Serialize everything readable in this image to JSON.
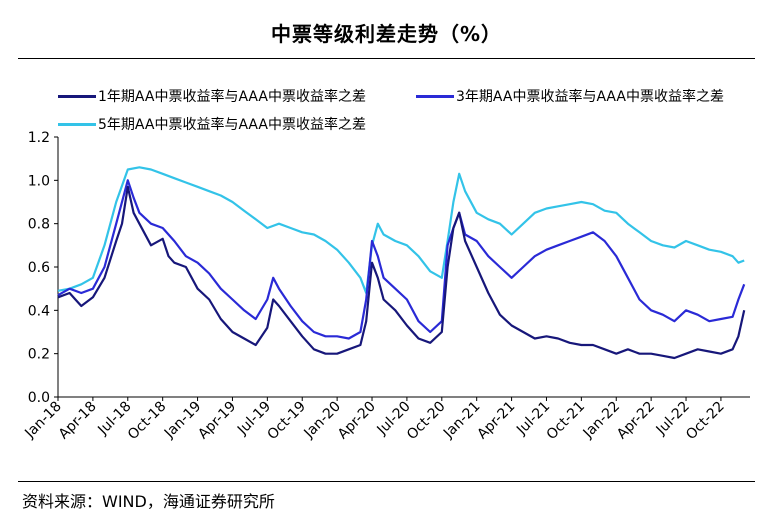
{
  "title": "中票等级利差走势（%）",
  "source": "资料来源：WIND，海通证券研究所",
  "colors": {
    "series1": "#17177a",
    "series2": "#2a2ad6",
    "series3": "#33c3e8",
    "axis": "#000000"
  },
  "chart_data": {
    "type": "line",
    "x_tick_labels": [
      "Jan-18",
      "Apr-18",
      "Jul-18",
      "Oct-18",
      "Jan-19",
      "Apr-19",
      "Jul-19",
      "Oct-19",
      "Jan-20",
      "Apr-20",
      "Jul-20",
      "Oct-20",
      "Jan-21",
      "Apr-21",
      "Jul-21",
      "Oct-21",
      "Jan-22",
      "Apr-22",
      "Jul-22",
      "Oct-22"
    ],
    "y_tick_labels": [
      "0.0",
      "0.2",
      "0.4",
      "0.6",
      "0.8",
      "1.0",
      "1.2"
    ],
    "ylim": [
      0,
      1.2
    ],
    "x_range_months": [
      0,
      59.5
    ],
    "series": [
      {
        "name": "1年期AA中票收益率与AAA中票收益率之差",
        "points": [
          [
            0,
            0.46
          ],
          [
            1,
            0.48
          ],
          [
            1.5,
            0.45
          ],
          [
            2,
            0.42
          ],
          [
            3,
            0.46
          ],
          [
            4,
            0.55
          ],
          [
            5,
            0.72
          ],
          [
            5.5,
            0.8
          ],
          [
            6,
            0.97
          ],
          [
            6.5,
            0.85
          ],
          [
            7,
            0.8
          ],
          [
            8,
            0.7
          ],
          [
            9,
            0.73
          ],
          [
            9.5,
            0.65
          ],
          [
            10,
            0.62
          ],
          [
            11,
            0.6
          ],
          [
            12,
            0.5
          ],
          [
            13,
            0.45
          ],
          [
            14,
            0.36
          ],
          [
            15,
            0.3
          ],
          [
            16,
            0.27
          ],
          [
            17,
            0.24
          ],
          [
            18,
            0.32
          ],
          [
            18.5,
            0.45
          ],
          [
            19,
            0.42
          ],
          [
            20,
            0.35
          ],
          [
            21,
            0.28
          ],
          [
            22,
            0.22
          ],
          [
            23,
            0.2
          ],
          [
            24,
            0.2
          ],
          [
            25,
            0.22
          ],
          [
            26,
            0.24
          ],
          [
            26.5,
            0.35
          ],
          [
            27,
            0.62
          ],
          [
            27.5,
            0.55
          ],
          [
            28,
            0.45
          ],
          [
            29,
            0.4
          ],
          [
            30,
            0.33
          ],
          [
            31,
            0.27
          ],
          [
            32,
            0.25
          ],
          [
            33,
            0.3
          ],
          [
            33.5,
            0.6
          ],
          [
            34,
            0.78
          ],
          [
            34.5,
            0.85
          ],
          [
            35,
            0.72
          ],
          [
            36,
            0.6
          ],
          [
            37,
            0.48
          ],
          [
            38,
            0.38
          ],
          [
            39,
            0.33
          ],
          [
            40,
            0.3
          ],
          [
            41,
            0.27
          ],
          [
            42,
            0.28
          ],
          [
            43,
            0.27
          ],
          [
            44,
            0.25
          ],
          [
            45,
            0.24
          ],
          [
            46,
            0.24
          ],
          [
            47,
            0.22
          ],
          [
            48,
            0.2
          ],
          [
            49,
            0.22
          ],
          [
            50,
            0.2
          ],
          [
            51,
            0.2
          ],
          [
            52,
            0.19
          ],
          [
            53,
            0.18
          ],
          [
            54,
            0.2
          ],
          [
            55,
            0.22
          ],
          [
            56,
            0.21
          ],
          [
            57,
            0.2
          ],
          [
            58,
            0.22
          ],
          [
            58.5,
            0.28
          ],
          [
            59,
            0.4
          ]
        ]
      },
      {
        "name": "3年期AA中票收益率与AAA中票收益率之差",
        "points": [
          [
            0,
            0.47
          ],
          [
            1,
            0.5
          ],
          [
            2,
            0.48
          ],
          [
            3,
            0.5
          ],
          [
            4,
            0.6
          ],
          [
            5,
            0.8
          ],
          [
            6,
            1.0
          ],
          [
            6.5,
            0.92
          ],
          [
            7,
            0.85
          ],
          [
            8,
            0.8
          ],
          [
            9,
            0.78
          ],
          [
            10,
            0.72
          ],
          [
            11,
            0.65
          ],
          [
            12,
            0.62
          ],
          [
            13,
            0.57
          ],
          [
            14,
            0.5
          ],
          [
            15,
            0.45
          ],
          [
            16,
            0.4
          ],
          [
            17,
            0.36
          ],
          [
            18,
            0.45
          ],
          [
            18.5,
            0.55
          ],
          [
            19,
            0.5
          ],
          [
            20,
            0.42
          ],
          [
            21,
            0.35
          ],
          [
            22,
            0.3
          ],
          [
            23,
            0.28
          ],
          [
            24,
            0.28
          ],
          [
            25,
            0.27
          ],
          [
            26,
            0.3
          ],
          [
            26.5,
            0.45
          ],
          [
            27,
            0.72
          ],
          [
            27.5,
            0.65
          ],
          [
            28,
            0.55
          ],
          [
            29,
            0.5
          ],
          [
            30,
            0.45
          ],
          [
            31,
            0.35
          ],
          [
            32,
            0.3
          ],
          [
            33,
            0.35
          ],
          [
            33.5,
            0.7
          ],
          [
            34,
            0.78
          ],
          [
            34.5,
            0.85
          ],
          [
            35,
            0.75
          ],
          [
            36,
            0.72
          ],
          [
            37,
            0.65
          ],
          [
            38,
            0.6
          ],
          [
            39,
            0.55
          ],
          [
            40,
            0.6
          ],
          [
            41,
            0.65
          ],
          [
            42,
            0.68
          ],
          [
            43,
            0.7
          ],
          [
            44,
            0.72
          ],
          [
            45,
            0.74
          ],
          [
            46,
            0.76
          ],
          [
            47,
            0.72
          ],
          [
            48,
            0.65
          ],
          [
            49,
            0.55
          ],
          [
            50,
            0.45
          ],
          [
            51,
            0.4
          ],
          [
            52,
            0.38
          ],
          [
            53,
            0.35
          ],
          [
            54,
            0.4
          ],
          [
            55,
            0.38
          ],
          [
            56,
            0.35
          ],
          [
            57,
            0.36
          ],
          [
            58,
            0.37
          ],
          [
            58.5,
            0.45
          ],
          [
            59,
            0.52
          ]
        ]
      },
      {
        "name": "5年期AA中票收益率与AAA中票收益率之差",
        "points": [
          [
            0,
            0.49
          ],
          [
            1,
            0.5
          ],
          [
            2,
            0.52
          ],
          [
            3,
            0.55
          ],
          [
            4,
            0.7
          ],
          [
            5,
            0.9
          ],
          [
            6,
            1.05
          ],
          [
            7,
            1.06
          ],
          [
            8,
            1.05
          ],
          [
            9,
            1.03
          ],
          [
            10,
            1.01
          ],
          [
            11,
            0.99
          ],
          [
            12,
            0.97
          ],
          [
            13,
            0.95
          ],
          [
            14,
            0.93
          ],
          [
            15,
            0.9
          ],
          [
            16,
            0.86
          ],
          [
            17,
            0.82
          ],
          [
            18,
            0.78
          ],
          [
            19,
            0.8
          ],
          [
            20,
            0.78
          ],
          [
            21,
            0.76
          ],
          [
            22,
            0.75
          ],
          [
            23,
            0.72
          ],
          [
            24,
            0.68
          ],
          [
            25,
            0.62
          ],
          [
            26,
            0.55
          ],
          [
            26.5,
            0.48
          ],
          [
            27,
            0.7
          ],
          [
            27.5,
            0.8
          ],
          [
            28,
            0.75
          ],
          [
            29,
            0.72
          ],
          [
            30,
            0.7
          ],
          [
            31,
            0.65
          ],
          [
            32,
            0.58
          ],
          [
            33,
            0.55
          ],
          [
            33.5,
            0.72
          ],
          [
            34,
            0.9
          ],
          [
            34.5,
            1.03
          ],
          [
            35,
            0.95
          ],
          [
            36,
            0.85
          ],
          [
            37,
            0.82
          ],
          [
            38,
            0.8
          ],
          [
            39,
            0.75
          ],
          [
            40,
            0.8
          ],
          [
            41,
            0.85
          ],
          [
            42,
            0.87
          ],
          [
            43,
            0.88
          ],
          [
            44,
            0.89
          ],
          [
            45,
            0.9
          ],
          [
            46,
            0.89
          ],
          [
            47,
            0.86
          ],
          [
            48,
            0.85
          ],
          [
            49,
            0.8
          ],
          [
            50,
            0.76
          ],
          [
            51,
            0.72
          ],
          [
            52,
            0.7
          ],
          [
            53,
            0.69
          ],
          [
            54,
            0.72
          ],
          [
            55,
            0.7
          ],
          [
            56,
            0.68
          ],
          [
            57,
            0.67
          ],
          [
            58,
            0.65
          ],
          [
            58.5,
            0.62
          ],
          [
            59,
            0.63
          ]
        ]
      }
    ]
  }
}
